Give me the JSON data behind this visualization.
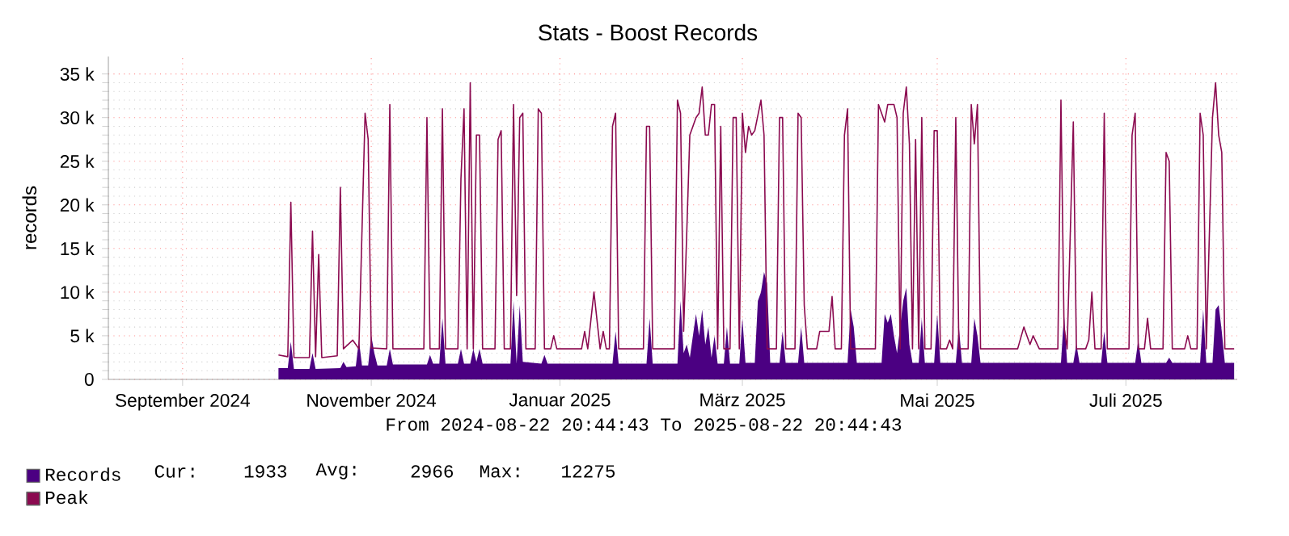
{
  "chart_data": {
    "type": "line",
    "title": "Stats - Boost Records",
    "ylabel": "records",
    "annotations": [
      "From 2024-08-22 20:44:43 To 2025-08-22 20:44:43",
      "Cur:",
      "1933",
      "Avg:",
      "2966",
      "Max:",
      "12275"
    ],
    "xlim": [
      "2024-08-22",
      "2025-08-22"
    ],
    "xticks": [
      {
        "value": "2024-09-15",
        "label": "September 2024"
      },
      {
        "value": "2024-11-15",
        "label": "November 2024"
      },
      {
        "value": "2025-01-15",
        "label": "Januar 2025"
      },
      {
        "value": "2025-03-15",
        "label": "März 2025"
      },
      {
        "value": "2025-05-17",
        "label": "Mai 2025"
      },
      {
        "value": "2025-07-17",
        "label": "Juli 2025"
      }
    ],
    "ylim": [
      0,
      37000
    ],
    "yticks": [
      0,
      {
        "value": 5000,
        "label": "5 k"
      },
      {
        "value": 10000,
        "label": "10 k"
      },
      {
        "value": 15000,
        "label": "15 k"
      },
      {
        "value": 20000,
        "label": "20 k"
      },
      {
        "value": 25000,
        "label": "25 k"
      },
      {
        "value": 30000,
        "label": "30 k"
      },
      {
        "value": 35000,
        "label": "35 k"
      }
    ],
    "grid": true,
    "legend": "bottom left",
    "series": [
      {
        "name": "Records",
        "type": "area",
        "color": "#4b0082",
        "x": [
          "2024-10-16",
          "2024-10-19",
          "2024-10-20",
          "2024-10-21",
          "2024-10-26",
          "2024-10-27",
          "2024-10-28",
          "2024-11-05",
          "2024-11-06",
          "2024-11-07",
          "2024-11-10",
          "2024-11-11",
          "2024-11-12",
          "2024-11-14",
          "2024-11-15",
          "2024-11-16",
          "2024-11-17",
          "2024-11-20",
          "2024-11-21",
          "2024-11-22",
          "2024-12-03",
          "2024-12-04",
          "2024-12-05",
          "2024-12-07",
          "2024-12-08",
          "2024-12-09",
          "2024-12-13",
          "2024-12-14",
          "2024-12-15",
          "2024-12-17",
          "2024-12-18",
          "2024-12-19",
          "2024-12-20",
          "2024-12-21",
          "2024-12-30",
          "2024-12-31",
          "2025-01-01",
          "2025-01-02",
          "2025-01-03",
          "2025-01-09",
          "2025-01-10",
          "2025-01-11",
          "2025-02-01",
          "2025-02-02",
          "2025-02-03",
          "2025-02-12",
          "2025-02-13",
          "2025-02-14",
          "2025-02-22",
          "2025-02-23",
          "2025-02-24",
          "2025-02-25",
          "2025-02-26",
          "2025-02-28",
          "2025-03-01",
          "2025-03-02",
          "2025-03-03",
          "2025-03-04",
          "2025-03-05",
          "2025-03-06",
          "2025-03-07",
          "2025-03-09",
          "2025-03-10",
          "2025-03-11",
          "2025-03-14",
          "2025-03-15",
          "2025-03-16",
          "2025-03-19",
          "2025-03-20",
          "2025-03-21",
          "2025-03-22",
          "2025-03-23",
          "2025-03-24",
          "2025-03-27",
          "2025-03-28",
          "2025-03-29",
          "2025-04-02",
          "2025-04-03",
          "2025-04-04",
          "2025-04-18",
          "2025-04-19",
          "2025-04-20",
          "2025-04-21",
          "2025-04-29",
          "2025-04-30",
          "2025-05-01",
          "2025-05-02",
          "2025-05-03",
          "2025-05-04",
          "2025-05-05",
          "2025-05-06",
          "2025-05-07",
          "2025-05-08",
          "2025-05-09",
          "2025-05-11",
          "2025-05-12",
          "2025-05-13",
          "2025-05-16",
          "2025-05-17",
          "2025-05-18",
          "2025-05-23",
          "2025-05-24",
          "2025-05-25",
          "2025-05-28",
          "2025-05-29",
          "2025-05-30",
          "2025-05-31",
          "2025-06-26",
          "2025-06-27",
          "2025-06-28",
          "2025-06-30",
          "2025-07-01",
          "2025-07-02",
          "2025-07-09",
          "2025-07-10",
          "2025-07-11",
          "2025-07-20",
          "2025-07-21",
          "2025-07-22",
          "2025-07-30",
          "2025-07-31",
          "2025-08-01",
          "2025-08-10",
          "2025-08-11",
          "2025-08-12",
          "2025-08-14",
          "2025-08-15",
          "2025-08-16",
          "2025-08-17",
          "2025-08-18",
          "2025-08-21"
        ],
        "values": [
          1300,
          1300,
          4300,
          1200,
          1200,
          3000,
          1200,
          1300,
          2000,
          1400,
          1500,
          4500,
          1600,
          1600,
          5000,
          3000,
          1600,
          1600,
          3500,
          1700,
          1700,
          2800,
          1800,
          1800,
          7000,
          1800,
          1800,
          3500,
          1800,
          1800,
          3500,
          2000,
          3500,
          1800,
          1800,
          9000,
          1800,
          8500,
          2000,
          1800,
          2800,
          1800,
          1800,
          5500,
          1800,
          1800,
          7000,
          1800,
          1800,
          9000,
          3000,
          4000,
          2500,
          7500,
          5000,
          8000,
          4000,
          6000,
          2500,
          5000,
          1800,
          1800,
          6000,
          1800,
          1800,
          7000,
          1900,
          1900,
          9000,
          10000,
          12300,
          11000,
          1900,
          1900,
          5500,
          1900,
          1900,
          6000,
          1900,
          1900,
          8000,
          6000,
          1900,
          1900,
          7500,
          6500,
          7500,
          5000,
          3000,
          6000,
          9000,
          10500,
          4000,
          1900,
          1900,
          7000,
          1900,
          1900,
          7500,
          1900,
          1900,
          6000,
          1900,
          1900,
          7000,
          5000,
          1900,
          1900,
          7500,
          1900,
          1900,
          4000,
          1900,
          1900,
          5500,
          1900,
          1900,
          4500,
          1900,
          1900,
          2500,
          1900,
          1900,
          8000,
          1900,
          1900,
          8000,
          8500,
          5500,
          1900,
          1900
        ]
      },
      {
        "name": "Peak",
        "color": "#8b0a50",
        "x": [
          "2024-10-16",
          "2024-10-19",
          "2024-10-20",
          "2024-10-21",
          "2024-10-26",
          "2024-10-27",
          "2024-10-28",
          "2024-10-29",
          "2024-10-30",
          "2024-11-04",
          "2024-11-05",
          "2024-11-06",
          "2024-11-09",
          "2024-11-11",
          "2024-11-13",
          "2024-11-14",
          "2024-11-15",
          "2024-11-20",
          "2024-11-21",
          "2024-11-22",
          "2024-12-02",
          "2024-12-03",
          "2024-12-04",
          "2024-12-07",
          "2024-12-08",
          "2024-12-09",
          "2024-12-13",
          "2024-12-14",
          "2024-12-15",
          "2024-12-16",
          "2024-12-17",
          "2024-12-18",
          "2024-12-19",
          "2024-12-20",
          "2024-12-21",
          "2024-12-25",
          "2024-12-26",
          "2024-12-27",
          "2024-12-28",
          "2024-12-30",
          "2024-12-31",
          "2025-01-01",
          "2025-01-02",
          "2025-01-03",
          "2025-01-04",
          "2025-01-07",
          "2025-01-08",
          "2025-01-09",
          "2025-01-10",
          "2025-01-12",
          "2025-01-13",
          "2025-01-14",
          "2025-01-22",
          "2025-01-23",
          "2025-01-24",
          "2025-01-26",
          "2025-01-28",
          "2025-01-29",
          "2025-01-30",
          "2025-01-31",
          "2025-02-01",
          "2025-02-02",
          "2025-02-03",
          "2025-02-11",
          "2025-02-12",
          "2025-02-13",
          "2025-02-14",
          "2025-02-21",
          "2025-02-22",
          "2025-02-23",
          "2025-02-24",
          "2025-02-26",
          "2025-02-27",
          "2025-02-28",
          "2025-03-01",
          "2025-03-02",
          "2025-03-03",
          "2025-03-04",
          "2025-03-05",
          "2025-03-06",
          "2025-03-07",
          "2025-03-08",
          "2025-03-09",
          "2025-03-11",
          "2025-03-12",
          "2025-03-13",
          "2025-03-14",
          "2025-03-15",
          "2025-03-16",
          "2025-03-17",
          "2025-03-18",
          "2025-03-19",
          "2025-03-21",
          "2025-03-22",
          "2025-03-23",
          "2025-03-26",
          "2025-03-27",
          "2025-03-28",
          "2025-03-29",
          "2025-04-01",
          "2025-04-02",
          "2025-04-03",
          "2025-04-04",
          "2025-04-05",
          "2025-04-08",
          "2025-04-09",
          "2025-04-12",
          "2025-04-13",
          "2025-04-14",
          "2025-04-16",
          "2025-04-17",
          "2025-04-18",
          "2025-04-19",
          "2025-04-27",
          "2025-04-28",
          "2025-04-30",
          "2025-05-01",
          "2025-05-03",
          "2025-05-04",
          "2025-05-05",
          "2025-05-06",
          "2025-05-07",
          "2025-05-08",
          "2025-05-09",
          "2025-05-10",
          "2025-05-11",
          "2025-05-12",
          "2025-05-13",
          "2025-05-15",
          "2025-05-16",
          "2025-05-17",
          "2025-05-18",
          "2025-05-20",
          "2025-05-21",
          "2025-05-22",
          "2025-05-23",
          "2025-05-24",
          "2025-05-27",
          "2025-05-28",
          "2025-05-29",
          "2025-05-30",
          "2025-05-31",
          "2025-06-12",
          "2025-06-14",
          "2025-06-16",
          "2025-06-17",
          "2025-06-19",
          "2025-06-25",
          "2025-06-26",
          "2025-06-27",
          "2025-06-28",
          "2025-06-30",
          "2025-07-01",
          "2025-07-04",
          "2025-07-05",
          "2025-07-06",
          "2025-07-07",
          "2025-07-09",
          "2025-07-10",
          "2025-07-11",
          "2025-07-18",
          "2025-07-19",
          "2025-07-20",
          "2025-07-21",
          "2025-07-23",
          "2025-07-24",
          "2025-07-25",
          "2025-07-29",
          "2025-07-30",
          "2025-07-31",
          "2025-08-01",
          "2025-08-05",
          "2025-08-06",
          "2025-08-07",
          "2025-08-09",
          "2025-08-10",
          "2025-08-11",
          "2025-08-12",
          "2025-08-14",
          "2025-08-15",
          "2025-08-16",
          "2025-08-17",
          "2025-08-18",
          "2025-08-21"
        ],
        "values": [
          2800,
          2600,
          20300,
          2500,
          2500,
          17000,
          2600,
          14300,
          2500,
          2700,
          22000,
          3500,
          4500,
          3500,
          30500,
          27500,
          3600,
          3500,
          31500,
          3500,
          3500,
          30000,
          3500,
          3500,
          31000,
          3500,
          3500,
          23000,
          31000,
          3500,
          34000,
          3500,
          28000,
          28000,
          3500,
          3500,
          27500,
          28500,
          3500,
          3500,
          31500,
          9600,
          30000,
          30500,
          3500,
          3500,
          31000,
          30500,
          3500,
          3500,
          5000,
          3500,
          3500,
          5500,
          3500,
          10000,
          3500,
          5500,
          3500,
          3500,
          29000,
          30500,
          3500,
          3500,
          29000,
          29000,
          3500,
          3500,
          32000,
          30500,
          5500,
          28000,
          29000,
          30000,
          30500,
          33500,
          28000,
          28000,
          31500,
          31500,
          3500,
          29000,
          3500,
          3500,
          30000,
          30000,
          3500,
          30500,
          26000,
          29000,
          28000,
          28500,
          32000,
          28000,
          3500,
          3500,
          30000,
          30000,
          3500,
          3500,
          30500,
          30000,
          8500,
          3500,
          3500,
          5500,
          5500,
          9500,
          3500,
          3500,
          28000,
          31000,
          3500,
          3500,
          31500,
          29500,
          31500,
          31500,
          30000,
          3500,
          30500,
          33500,
          27000,
          3500,
          27500,
          3500,
          30000,
          3500,
          3500,
          28500,
          28500,
          3500,
          3500,
          4500,
          3500,
          30000,
          3500,
          3500,
          31500,
          27000,
          31500,
          3500,
          3500,
          6000,
          4000,
          5000,
          3500,
          3500,
          32000,
          6000,
          3500,
          29500,
          3500,
          3500,
          4500,
          10000,
          3500,
          3500,
          30500,
          3500,
          3500,
          28000,
          30500,
          3500,
          3500,
          7000,
          3500,
          3500,
          26000,
          25000,
          3500,
          3500,
          5000,
          3500,
          3500,
          30500,
          28000,
          3500,
          30000,
          34000,
          28000,
          26000,
          3500,
          3500
        ]
      }
    ]
  }
}
